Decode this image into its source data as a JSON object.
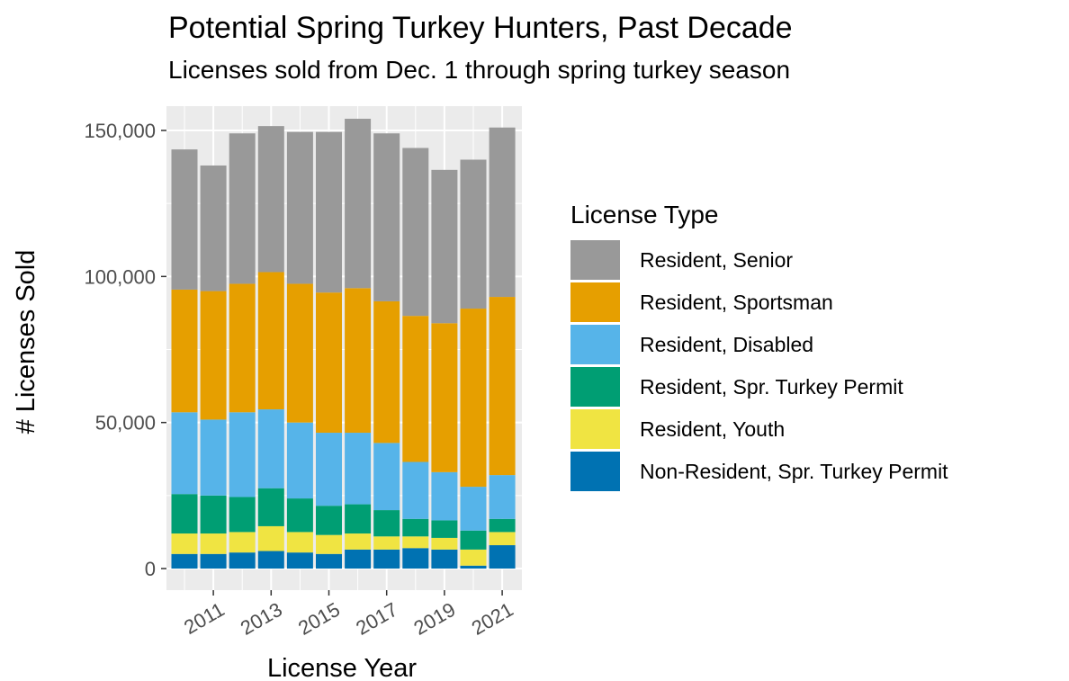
{
  "chart_data": {
    "type": "bar",
    "stacked": true,
    "title": "Potential Spring Turkey Hunters, Past Decade",
    "subtitle": "Licenses sold from Dec. 1 through spring turkey season",
    "xlabel": "License Year",
    "ylabel": "# Licenses Sold",
    "categories": [
      2010,
      2011,
      2012,
      2013,
      2014,
      2015,
      2016,
      2017,
      2018,
      2019,
      2020,
      2021
    ],
    "x_tick_labels": [
      "2011",
      "2013",
      "2015",
      "2017",
      "2019",
      "2021"
    ],
    "x_tick_values": [
      2011,
      2013,
      2015,
      2017,
      2019,
      2021
    ],
    "ylim": [
      0,
      155000
    ],
    "y_ticks": [
      0,
      50000,
      100000,
      150000
    ],
    "y_tick_labels": [
      "0",
      "50,000",
      "100,000",
      "150,000"
    ],
    "grid": true,
    "legend_title": "License Type",
    "legend_position": "right",
    "series": [
      {
        "name": "Non-Resident, Spr. Turkey Permit",
        "color": "#0072B2",
        "values": [
          5000,
          5000,
          5500,
          6000,
          5500,
          5000,
          6500,
          6500,
          7000,
          6500,
          1000,
          8000
        ]
      },
      {
        "name": "Resident, Youth",
        "color": "#F0E442",
        "values": [
          7000,
          7000,
          7000,
          8500,
          7000,
          6500,
          5500,
          4500,
          4000,
          4000,
          5500,
          4500
        ]
      },
      {
        "name": "Resident, Spr. Turkey Permit",
        "color": "#009E73",
        "values": [
          13500,
          13000,
          12000,
          13000,
          11500,
          10000,
          10000,
          9000,
          6000,
          6000,
          6500,
          4500
        ]
      },
      {
        "name": "Resident, Disabled",
        "color": "#56B4E9",
        "values": [
          28000,
          26000,
          29000,
          27000,
          26000,
          25000,
          24500,
          23000,
          19500,
          16500,
          15000,
          15000
        ]
      },
      {
        "name": "Resident, Sportsman",
        "color": "#E69F00",
        "values": [
          42000,
          44000,
          44000,
          47000,
          47500,
          48000,
          49500,
          48500,
          50000,
          51000,
          61000,
          61000
        ]
      },
      {
        "name": "Resident, Senior",
        "color": "#999999",
        "values": [
          48000,
          43000,
          51500,
          50000,
          52000,
          55000,
          58000,
          57500,
          57500,
          52500,
          51000,
          58000
        ]
      }
    ]
  }
}
